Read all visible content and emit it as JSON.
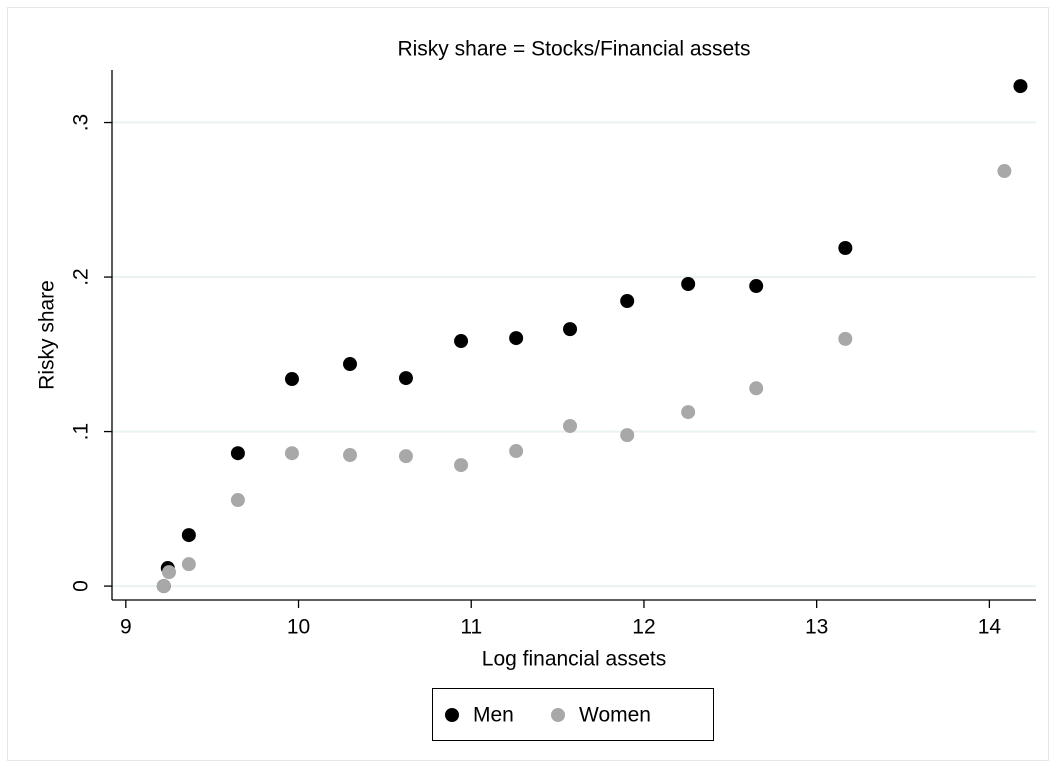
{
  "chart_data": {
    "type": "scatter",
    "title": "Risky share = Stocks/Financial assets",
    "x_label": "Log financial assets",
    "y_label": "Risky share",
    "xlim": [
      8.92,
      14.27
    ],
    "ylim": [
      -0.009,
      0.334
    ],
    "xticks": [
      9,
      10,
      11,
      12,
      13,
      14
    ],
    "yticks": [
      0,
      {
        "value": 0.1,
        "label": ".1"
      },
      {
        "value": 0.2,
        "label": ".2"
      },
      {
        "value": 0.3,
        "label": ".3"
      }
    ],
    "grid": true,
    "legend_position": "bottom",
    "series": [
      {
        "name": "Men",
        "color": "#000000",
        "x": [
          9.22,
          9.243,
          9.365,
          9.649,
          9.962,
          10.298,
          10.622,
          10.941,
          11.26,
          11.572,
          11.903,
          12.256,
          12.65,
          13.166,
          14.18
        ],
        "values": [
          0.0,
          0.0117,
          0.033,
          0.086,
          0.134,
          0.1437,
          0.1346,
          0.1586,
          0.1605,
          0.1663,
          0.1845,
          0.1955,
          0.1942,
          0.2188,
          0.3236
        ]
      },
      {
        "name": "Women",
        "color": "#a8a8a8",
        "x": [
          9.22,
          9.25,
          9.365,
          9.649,
          9.962,
          10.298,
          10.622,
          10.941,
          11.26,
          11.572,
          11.903,
          12.256,
          12.65,
          13.166,
          14.087
        ],
        "values": [
          0.0,
          0.009,
          0.0142,
          0.0557,
          0.086,
          0.0848,
          0.0841,
          0.0783,
          0.0874,
          0.1036,
          0.0977,
          0.1126,
          0.128,
          0.16,
          0.2686
        ]
      }
    ]
  }
}
